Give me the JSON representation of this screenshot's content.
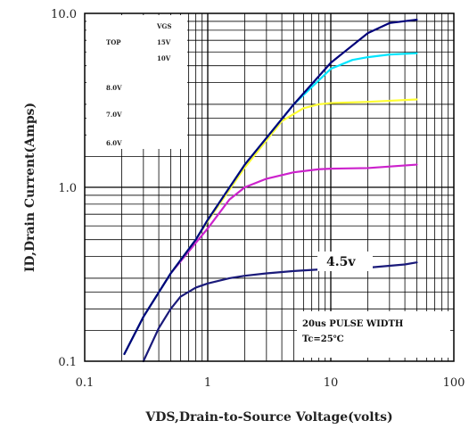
{
  "chart_data": {
    "type": "line",
    "xscale": "log",
    "yscale": "log",
    "xlim": [
      0.1,
      100
    ],
    "ylim": [
      0.1,
      10
    ],
    "xlabel": "VDS,Drain-to-Source Voltage(volts)",
    "ylabel": "ID,Drain Current(Amps)",
    "xticks": [
      "0.1",
      "1",
      "10",
      "100"
    ],
    "yticks": [
      "0.1",
      "1.0",
      "10.0"
    ],
    "grid": true,
    "legend": {
      "header": "VGS",
      "rows": [
        {
          "tag": "TOP",
          "value": "15V"
        },
        {
          "tag": "",
          "value": "10V"
        },
        {
          "tag": "",
          "value": "8.0V"
        },
        {
          "tag": "",
          "value": "7.0V"
        },
        {
          "tag": "",
          "value": "6.0V"
        }
      ]
    },
    "annotations": {
      "curve_label": "4.5v",
      "note_line1": "20us PULSE WIDTH",
      "note_line2": "Tc=25℃"
    },
    "series": [
      {
        "color": "#00007a",
        "x": [
          0.21,
          0.3,
          0.5,
          0.8,
          1.0,
          2.0,
          5.0,
          10.0,
          20.0,
          30.0,
          50.0
        ],
        "y": [
          0.11,
          0.18,
          0.32,
          0.5,
          0.65,
          1.35,
          3.0,
          5.2,
          7.7,
          8.8,
          9.2
        ]
      },
      {
        "color": "#00e5ff",
        "x": [
          0.21,
          0.3,
          0.5,
          0.8,
          1.0,
          2.0,
          5.0,
          10.0,
          15.0,
          20.0,
          30.0,
          50.0
        ],
        "y": [
          0.11,
          0.18,
          0.32,
          0.5,
          0.65,
          1.35,
          3.0,
          4.8,
          5.4,
          5.6,
          5.8,
          5.9
        ]
      },
      {
        "color": "#ffff33",
        "x": [
          0.21,
          0.3,
          0.5,
          0.8,
          1.0,
          2.0,
          4.0,
          6.0,
          8.0,
          10.0,
          20.0,
          50.0
        ],
        "y": [
          0.11,
          0.18,
          0.32,
          0.5,
          0.64,
          1.3,
          2.4,
          2.85,
          3.0,
          3.05,
          3.1,
          3.2
        ]
      },
      {
        "color": "#cc22cc",
        "x": [
          0.21,
          0.3,
          0.5,
          0.8,
          1.0,
          1.5,
          2.0,
          3.0,
          5.0,
          8.0,
          10.0,
          20.0,
          50.0
        ],
        "y": [
          0.11,
          0.18,
          0.32,
          0.48,
          0.58,
          0.85,
          1.0,
          1.12,
          1.22,
          1.27,
          1.28,
          1.29,
          1.35
        ]
      },
      {
        "color": "#1a1a7a",
        "x": [
          0.3,
          0.4,
          0.5,
          0.6,
          0.8,
          1.0,
          1.5,
          2.0,
          3.0,
          5.0,
          10.0,
          20.0,
          40.0,
          50.0
        ],
        "y": [
          0.1,
          0.155,
          0.2,
          0.235,
          0.265,
          0.28,
          0.3,
          0.31,
          0.32,
          0.33,
          0.34,
          0.345,
          0.36,
          0.37
        ]
      }
    ]
  }
}
